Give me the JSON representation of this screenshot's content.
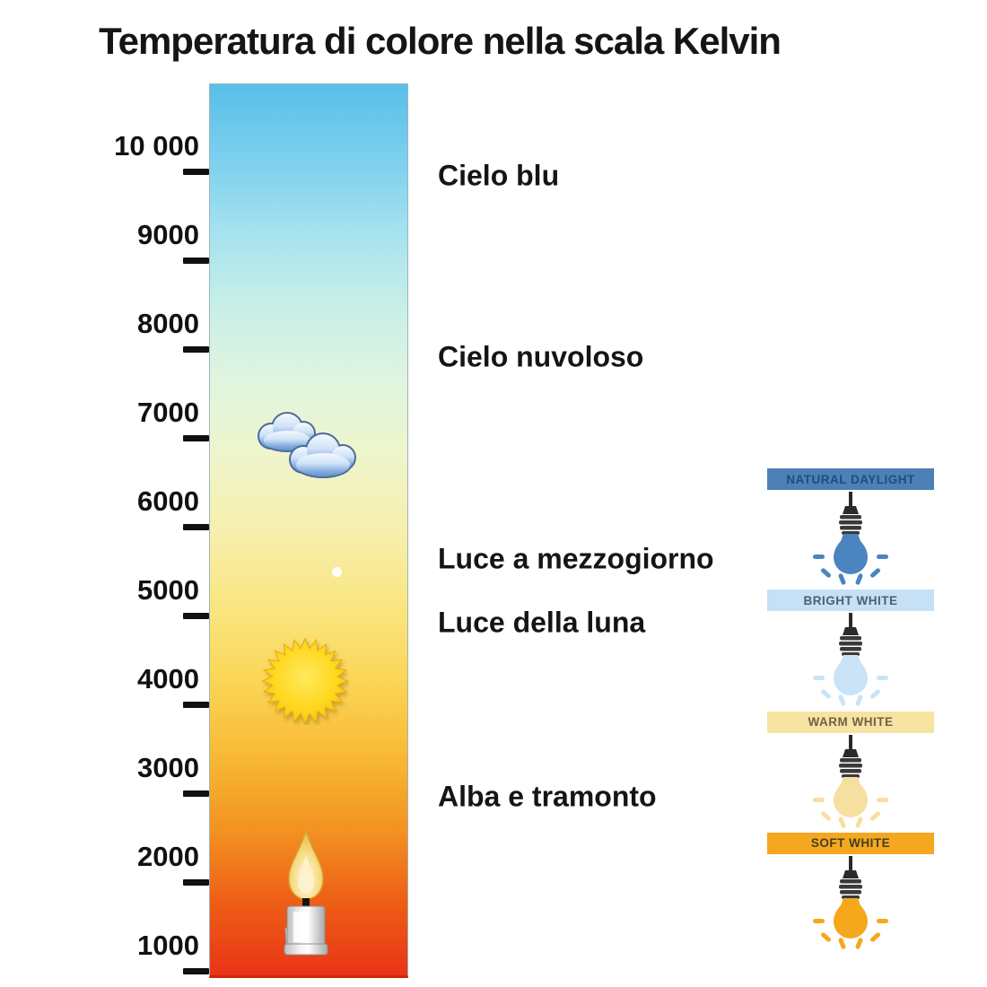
{
  "title": "Temperatura di colore nella scala Kelvin",
  "scale": {
    "ticks": [
      "10 000",
      "9000",
      "8000",
      "7000",
      "6000",
      "5000",
      "4000",
      "3000",
      "2000",
      "1000"
    ]
  },
  "annotations": [
    "Cielo blu",
    "Cielo nuvoloso",
    "Luce a mezzogiorno",
    "Luce della luna",
    "Alba e tramonto"
  ],
  "column_gradient": [
    "#58bfe9",
    "#7ccfee",
    "#a5e2ef",
    "#c8efe7",
    "#e0f5df",
    "#eef5cb",
    "#f7efae",
    "#f9e683",
    "#fbd658",
    "#f8bb35",
    "#f39422",
    "#ee5f16",
    "#e93417"
  ],
  "icons": {
    "clouds": "clouds-icon",
    "moon": "moon-icon",
    "sun": "sun-icon",
    "candle": "candle-icon",
    "bulb": "light-bulb-icon"
  },
  "panels": [
    {
      "label": "NATURAL DAYLIGHT",
      "banner_color": "#4d80b7",
      "label_color": "#1d4d7e",
      "bulb_color": "#4a84c1"
    },
    {
      "label": "BRIGHT WHITE",
      "banner_color": "#c6e0f5",
      "label_color": "#50606f",
      "bulb_color": "#cae3f6"
    },
    {
      "label": "WARM WHITE",
      "banner_color": "#f7e3a2",
      "label_color": "#6f6246",
      "bulb_color": "#f7dfa0"
    },
    {
      "label": "SOFT WHITE",
      "banner_color": "#f4a71f",
      "label_color": "#473e22",
      "bulb_color": "#f5a81c"
    }
  ]
}
